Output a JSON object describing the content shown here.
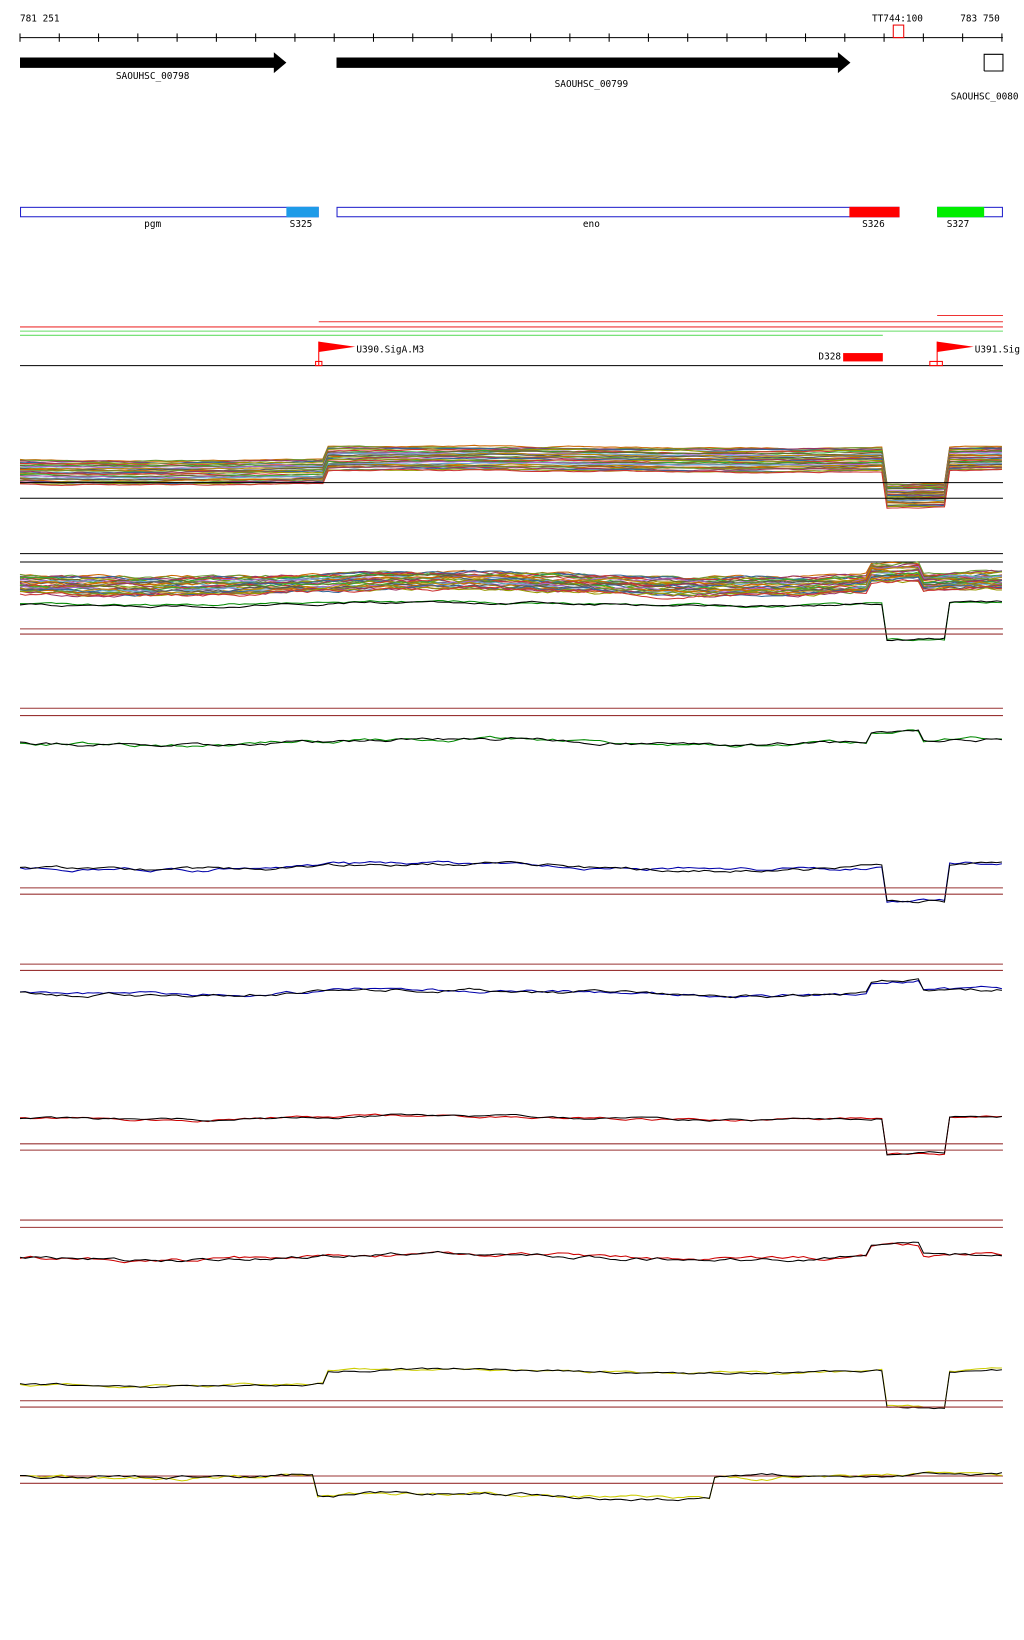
{
  "ruler": {
    "start": "781 251",
    "end": "783 750",
    "marker": "TT744:100"
  },
  "genes": [
    "SAOUHSC_00798",
    "SAOUHSC_00799",
    "SAOUHSC_0080"
  ],
  "segments": [
    "pgm",
    "S325",
    "eno",
    "S326",
    "S327"
  ],
  "features": [
    "U390.SigA.M3",
    "D328",
    "U391.Sig"
  ]
}
